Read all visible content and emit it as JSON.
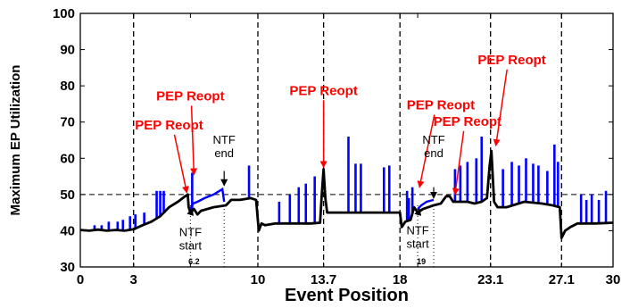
{
  "chart_data": {
    "type": "line",
    "xlabel": "Event Position",
    "ylabel": "Maximum EP Utilization",
    "xlim": [
      0,
      30
    ],
    "ylim": [
      30,
      100
    ],
    "x_ticks": [
      {
        "value": 0,
        "label": "0"
      },
      {
        "value": 3,
        "label": "3"
      },
      {
        "value": 6.2,
        "label": "6.2",
        "small": true
      },
      {
        "value": 10,
        "label": "10"
      },
      {
        "value": 13.7,
        "label": "13.7"
      },
      {
        "value": 18,
        "label": "18"
      },
      {
        "value": 19,
        "label": "19",
        "small": true
      },
      {
        "value": 23.1,
        "label": "23.1"
      },
      {
        "value": 27.1,
        "label": "27.1"
      },
      {
        "value": 30,
        "label": "30"
      }
    ],
    "y_ticks": [
      30,
      40,
      50,
      60,
      70,
      80,
      90,
      100
    ],
    "threshold": 50,
    "event_lines": [
      3,
      10,
      13.7,
      18,
      23.1,
      27.1
    ],
    "ntf_lines": [
      6.2,
      8.1,
      19,
      19.9
    ],
    "series": [
      {
        "color": "#000000",
        "points": [
          [
            0,
            40.2
          ],
          [
            0.5,
            40
          ],
          [
            1,
            40.3
          ],
          [
            1.5,
            40
          ],
          [
            2,
            40.2
          ],
          [
            2.5,
            40
          ],
          [
            3,
            40.4
          ],
          [
            3.5,
            41.5
          ],
          [
            4,
            42.5
          ],
          [
            4.5,
            44
          ],
          [
            5,
            46.5
          ],
          [
            5.5,
            48
          ],
          [
            5.9,
            49.5
          ],
          [
            6.05,
            50
          ],
          [
            6.1,
            46.5
          ],
          [
            6.2,
            45
          ],
          [
            6.4,
            46
          ],
          [
            6.6,
            44.5
          ],
          [
            6.8,
            45.5
          ],
          [
            7.5,
            46.5
          ],
          [
            8.2,
            47
          ],
          [
            8.3,
            47.5
          ],
          [
            8.5,
            48.5
          ],
          [
            9,
            48.5
          ],
          [
            9.6,
            49
          ],
          [
            9.9,
            48.5
          ],
          [
            10.05,
            40
          ],
          [
            10.2,
            42
          ],
          [
            10.4,
            41.5
          ],
          [
            11,
            42
          ],
          [
            12,
            42
          ],
          [
            13,
            42
          ],
          [
            13.5,
            42.2
          ],
          [
            13.6,
            50
          ],
          [
            13.7,
            57
          ],
          [
            13.8,
            49
          ],
          [
            13.9,
            45
          ],
          [
            14.5,
            45
          ],
          [
            15.5,
            45
          ],
          [
            16.5,
            45
          ],
          [
            17.5,
            45
          ],
          [
            18,
            45
          ],
          [
            18.1,
            41
          ],
          [
            18.3,
            42.5
          ],
          [
            18.6,
            43
          ],
          [
            18.8,
            46.5
          ],
          [
            19,
            45
          ],
          [
            19.3,
            46
          ],
          [
            19.6,
            46.5
          ],
          [
            19.9,
            47
          ],
          [
            20.3,
            47.5
          ],
          [
            20.6,
            49.5
          ],
          [
            20.8,
            49.5
          ],
          [
            21,
            48
          ],
          [
            21.3,
            48
          ],
          [
            21.8,
            48
          ],
          [
            22.2,
            47.5
          ],
          [
            22.6,
            48
          ],
          [
            22.9,
            49
          ],
          [
            23.05,
            58
          ],
          [
            23.15,
            62
          ],
          [
            23.3,
            48
          ],
          [
            23.5,
            46.5
          ],
          [
            24,
            46.5
          ],
          [
            25,
            48
          ],
          [
            26,
            47.5
          ],
          [
            26.6,
            47
          ],
          [
            27,
            46.5
          ],
          [
            27.1,
            38
          ],
          [
            27.3,
            40
          ],
          [
            27.6,
            41
          ],
          [
            28,
            42
          ],
          [
            29,
            42
          ],
          [
            30,
            42.2
          ]
        ]
      }
    ],
    "blue_segments": [
      [
        [
          6.2,
          46
        ],
        [
          6.35,
          47.5
        ],
        [
          6.6,
          48
        ],
        [
          7,
          49
        ],
        [
          7.5,
          50
        ],
        [
          8.0,
          51.5
        ],
        [
          8.1,
          48
        ]
      ],
      [
        [
          19,
          46
        ],
        [
          19.2,
          47
        ],
        [
          19.5,
          48
        ],
        [
          19.9,
          48.5
        ]
      ]
    ],
    "spikes": [
      {
        "x": 0.8,
        "y": 41.5
      },
      {
        "x": 1.2,
        "y": 41.5
      },
      {
        "x": 1.6,
        "y": 42.5
      },
      {
        "x": 2.1,
        "y": 42.5
      },
      {
        "x": 2.4,
        "y": 43
      },
      {
        "x": 2.8,
        "y": 44
      },
      {
        "x": 3.1,
        "y": 44.5
      },
      {
        "x": 3.6,
        "y": 45
      },
      {
        "x": 4.3,
        "y": 51
      },
      {
        "x": 4.5,
        "y": 51
      },
      {
        "x": 4.7,
        "y": 51
      },
      {
        "x": 6.3,
        "y": 56
      },
      {
        "x": 9.5,
        "y": 58
      },
      {
        "x": 11.2,
        "y": 48
      },
      {
        "x": 11.8,
        "y": 50
      },
      {
        "x": 12.3,
        "y": 52
      },
      {
        "x": 12.7,
        "y": 53
      },
      {
        "x": 13.2,
        "y": 55
      },
      {
        "x": 15.1,
        "y": 66
      },
      {
        "x": 15.5,
        "y": 58.5
      },
      {
        "x": 15.8,
        "y": 58.5
      },
      {
        "x": 17.1,
        "y": 57.5
      },
      {
        "x": 17.4,
        "y": 58
      },
      {
        "x": 18.4,
        "y": 51
      },
      {
        "x": 18.5,
        "y": 49
      },
      {
        "x": 18.7,
        "y": 52
      },
      {
        "x": 21.1,
        "y": 57
      },
      {
        "x": 21.4,
        "y": 58
      },
      {
        "x": 21.8,
        "y": 59
      },
      {
        "x": 22.3,
        "y": 60
      },
      {
        "x": 22.6,
        "y": 66
      },
      {
        "x": 23.8,
        "y": 57
      },
      {
        "x": 24.3,
        "y": 59
      },
      {
        "x": 24.7,
        "y": 58
      },
      {
        "x": 25.1,
        "y": 60
      },
      {
        "x": 25.5,
        "y": 58.5
      },
      {
        "x": 25.8,
        "y": 58
      },
      {
        "x": 26.3,
        "y": 56.5
      },
      {
        "x": 26.7,
        "y": 63.8
      },
      {
        "x": 26.9,
        "y": 59
      },
      {
        "x": 28.2,
        "y": 50
      },
      {
        "x": 28.5,
        "y": 48.5
      },
      {
        "x": 28.8,
        "y": 50
      },
      {
        "x": 29.2,
        "y": 48.5
      },
      {
        "x": 29.6,
        "y": 51
      }
    ],
    "annotations": [
      {
        "text": "PEP Reopt",
        "label_x": 5.0,
        "label_y": 68,
        "arrow_to": [
          6.0,
          50.5
        ]
      },
      {
        "text": "PEP Reopt",
        "label_x": 6.2,
        "label_y": 76,
        "arrow_to": [
          6.4,
          55.5
        ]
      },
      {
        "text": "PEP Reopt",
        "label_x": 13.7,
        "label_y": 77.5,
        "arrow_to": [
          13.7,
          57.5
        ]
      },
      {
        "text": "PEP Reopt",
        "label_x": 20.3,
        "label_y": 73.5,
        "arrow_to": [
          19.1,
          52
        ]
      },
      {
        "text": "PEP Reopt",
        "label_x": 21.8,
        "label_y": 69,
        "arrow_to": [
          21.1,
          50
        ]
      },
      {
        "text": "PEP Reopt",
        "label_x": 24.3,
        "label_y": 86,
        "arrow_to": [
          23.4,
          63.5
        ]
      }
    ],
    "ntf_labels": [
      {
        "lines": [
          "NTF",
          "start"
        ],
        "x": 6.2,
        "y": 38.5,
        "arrow_from": [
          6.2,
          44.5
        ],
        "arrow_to": [
          6.3,
          46
        ]
      },
      {
        "lines": [
          "NTF",
          "end"
        ],
        "x": 8.1,
        "y": 64,
        "arrow_from": [
          8.1,
          56.5
        ],
        "arrow_to": [
          8.1,
          52.5
        ]
      },
      {
        "lines": [
          "NTF",
          "start"
        ],
        "x": 19,
        "y": 39,
        "arrow_from": [
          19,
          44.2
        ],
        "arrow_to": [
          19.1,
          46
        ]
      },
      {
        "lines": [
          "NTF",
          "end"
        ],
        "x": 19.9,
        "y": 64,
        "arrow_from": [
          19.9,
          52
        ],
        "arrow_to": [
          19.9,
          49
        ]
      }
    ]
  }
}
